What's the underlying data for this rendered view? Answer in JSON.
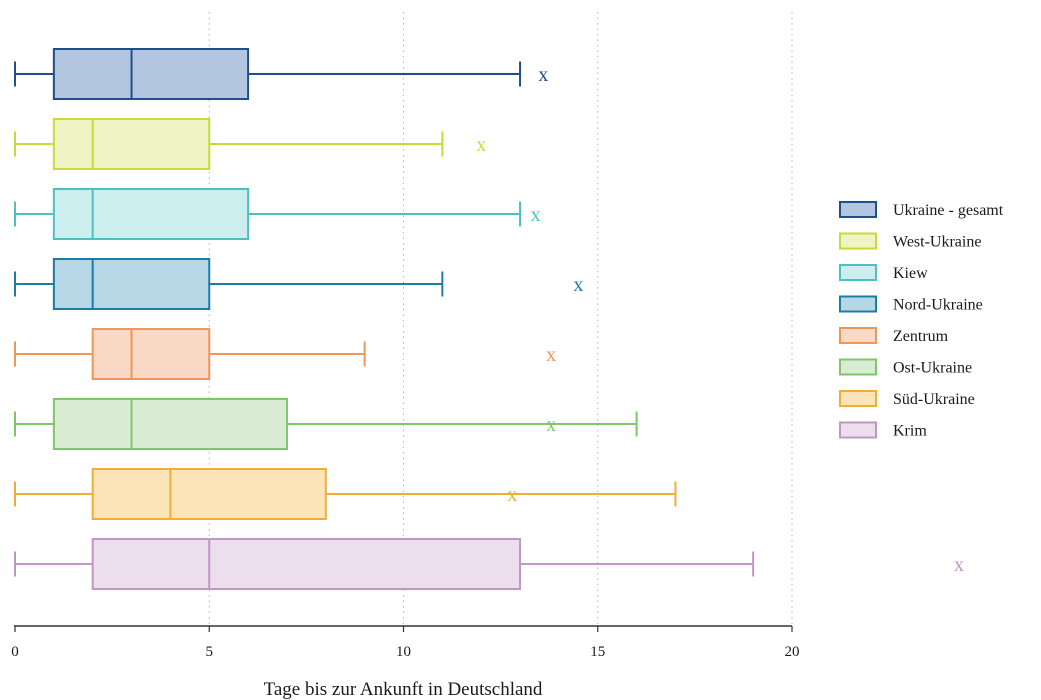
{
  "chart_data": {
    "type": "boxplot",
    "orientation": "horizontal",
    "xlabel": "Tage bis zur Ankunft in Deutschland",
    "xlim": [
      0,
      20
    ],
    "xticks": [
      0,
      5,
      10,
      15,
      20
    ],
    "grid": "vertical dotted",
    "legend_position": "right",
    "mean_marker": "x",
    "series": [
      {
        "name": "Ukraine - gesamt",
        "min": 0,
        "q1": 1,
        "median": 3,
        "q3": 6,
        "max": 13,
        "mean": 13.6,
        "stroke": "#1f4e8c",
        "fill": "#b3c6df"
      },
      {
        "name": "West-Ukraine",
        "min": 0,
        "q1": 1,
        "median": 2,
        "q3": 5,
        "max": 11,
        "mean": 12.0,
        "stroke": "#c8d93a",
        "fill": "#eff4c4"
      },
      {
        "name": "Kiew",
        "min": 0,
        "q1": 1,
        "median": 2,
        "q3": 6,
        "max": 13,
        "mean": 13.4,
        "stroke": "#4fc0c0",
        "fill": "#cdeeee"
      },
      {
        "name": "Nord-Ukraine",
        "min": 0,
        "q1": 1,
        "median": 2,
        "q3": 5,
        "max": 11,
        "mean": 14.5,
        "stroke": "#1e7ba6",
        "fill": "#b6d8e6"
      },
      {
        "name": "Zentrum",
        "min": 0,
        "q1": 2,
        "median": 3,
        "q3": 5,
        "max": 9,
        "mean": 13.8,
        "stroke": "#f0965a",
        "fill": "#fad8c6"
      },
      {
        "name": "Ost-Ukraine",
        "min": 0,
        "q1": 1,
        "median": 3,
        "q3": 7,
        "max": 16,
        "mean": 13.8,
        "stroke": "#7fc66a",
        "fill": "#d9ecd3"
      },
      {
        "name": "Süd-Ukraine",
        "min": 0,
        "q1": 2,
        "median": 4,
        "q3": 8,
        "max": 17,
        "mean": 12.8,
        "stroke": "#f2ac38",
        "fill": "#fbe4b8"
      },
      {
        "name": "Krim",
        "min": 0,
        "q1": 2,
        "median": 5,
        "q3": 13,
        "max": 19,
        "mean": 24.3,
        "stroke": "#bf96c4",
        "fill": "#ecdeec"
      }
    ]
  }
}
